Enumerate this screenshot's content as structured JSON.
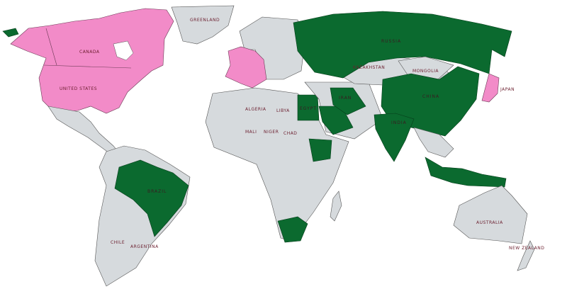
{
  "colors": {
    "group_pink": "#f28bc8",
    "group_green": "#0b6a2f",
    "other_land": "#d6dadd",
    "ocean": "#ffffff",
    "label": "#6b1e2e"
  },
  "highlighted": {
    "pink": [
      "Canada",
      "United States",
      "United Kingdom",
      "France",
      "Germany",
      "Italy",
      "Japan"
    ],
    "green": [
      "Russia",
      "China",
      "India",
      "Brazil",
      "South Africa",
      "Iran",
      "Egypt",
      "Ethiopia",
      "Saudi Arabia",
      "Indonesia"
    ]
  },
  "labels": {
    "canada": "CANADA",
    "usa": "UNITED STATES",
    "greenland": "GREENLAND",
    "russia": "RUSSIA",
    "kazakhstan": "KAZAKHSTAN",
    "mongolia": "MONGOLIA",
    "china": "CHINA",
    "india": "INDIA",
    "japan": "JAPAN",
    "iran": "IRAN",
    "egypt": "EGYPT",
    "algeria": "ALGERIA",
    "libya": "LIBYA",
    "mali": "MALI",
    "niger": "NIGER",
    "chad": "CHAD",
    "brazil": "BRAZIL",
    "chile": "CHILE",
    "argentina": "ARGENTINA",
    "australia": "AUSTRALIA",
    "new_zealand": "NEW ZEALAND"
  }
}
